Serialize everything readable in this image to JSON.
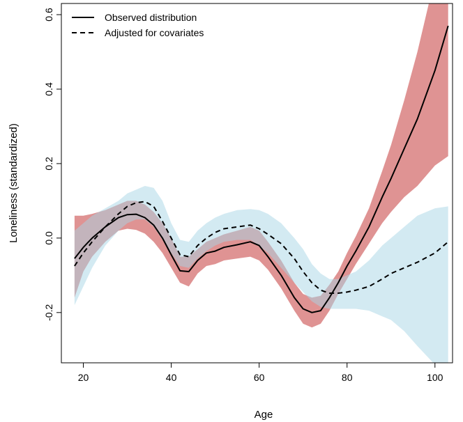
{
  "chart_data": {
    "type": "line",
    "title": "",
    "xlabel": "Age",
    "ylabel": "Loneliness (standardized)",
    "xlim": [
      15,
      104
    ],
    "ylim": [
      -0.335,
      0.63
    ],
    "x_ticks": [
      20,
      40,
      60,
      80,
      100
    ],
    "y_ticks": [
      -0.2,
      0.0,
      0.2,
      0.4,
      0.6
    ],
    "x_tick_labels": [
      "20",
      "40",
      "60",
      "80",
      "100"
    ],
    "y_tick_labels": [
      "-0.2",
      "0.0",
      "0.2",
      "0.4",
      "0.6"
    ],
    "grid": false,
    "legend_position": "top-left",
    "series": [
      {
        "name": "Observed distribution",
        "line_style": "solid",
        "band_color": "#d98080",
        "x": [
          18,
          20,
          22,
          25,
          28,
          30,
          32,
          34,
          36,
          38,
          40,
          42,
          44,
          46,
          48,
          50,
          52,
          55,
          58,
          60,
          62,
          65,
          68,
          70,
          72,
          74,
          76,
          78,
          80,
          82,
          85,
          88,
          90,
          93,
          96,
          100,
          103
        ],
        "y": [
          -0.055,
          -0.025,
          0.0,
          0.03,
          0.055,
          0.063,
          0.064,
          0.055,
          0.035,
          0.0,
          -0.045,
          -0.088,
          -0.09,
          -0.06,
          -0.04,
          -0.035,
          -0.025,
          -0.018,
          -0.01,
          -0.02,
          -0.05,
          -0.1,
          -0.16,
          -0.19,
          -0.2,
          -0.195,
          -0.16,
          -0.12,
          -0.075,
          -0.035,
          0.03,
          0.11,
          0.16,
          0.24,
          0.32,
          0.45,
          0.57
        ],
        "lower": [
          -0.16,
          -0.09,
          -0.05,
          -0.01,
          0.02,
          0.025,
          0.022,
          0.012,
          -0.01,
          -0.04,
          -0.08,
          -0.12,
          -0.13,
          -0.095,
          -0.075,
          -0.07,
          -0.06,
          -0.055,
          -0.05,
          -0.06,
          -0.085,
          -0.135,
          -0.195,
          -0.23,
          -0.24,
          -0.23,
          -0.195,
          -0.15,
          -0.11,
          -0.07,
          -0.015,
          0.04,
          0.07,
          0.11,
          0.14,
          0.195,
          0.22
        ],
        "upper": [
          0.06,
          0.06,
          0.065,
          0.075,
          0.09,
          0.1,
          0.1,
          0.09,
          0.07,
          0.04,
          0.0,
          -0.05,
          -0.05,
          -0.03,
          -0.01,
          0.0,
          0.01,
          0.02,
          0.03,
          0.02,
          -0.01,
          -0.06,
          -0.12,
          -0.15,
          -0.16,
          -0.155,
          -0.125,
          -0.09,
          -0.04,
          0.005,
          0.08,
          0.18,
          0.25,
          0.37,
          0.5,
          0.7,
          0.91
        ]
      },
      {
        "name": "Adjusted for covariates",
        "line_style": "dashed",
        "band_color": "#a8d6e6",
        "x": [
          18,
          20,
          22,
          25,
          28,
          30,
          32,
          34,
          36,
          38,
          40,
          42,
          44,
          46,
          48,
          50,
          52,
          55,
          58,
          60,
          62,
          65,
          68,
          70,
          72,
          74,
          76,
          78,
          80,
          82,
          85,
          88,
          90,
          93,
          96,
          100,
          103
        ],
        "y": [
          -0.075,
          -0.04,
          -0.01,
          0.03,
          0.065,
          0.085,
          0.095,
          0.098,
          0.085,
          0.045,
          0.0,
          -0.045,
          -0.05,
          -0.02,
          0.0,
          0.015,
          0.025,
          0.03,
          0.035,
          0.025,
          0.01,
          -0.015,
          -0.055,
          -0.09,
          -0.12,
          -0.14,
          -0.148,
          -0.148,
          -0.145,
          -0.14,
          -0.13,
          -0.11,
          -0.095,
          -0.08,
          -0.065,
          -0.04,
          -0.01
        ],
        "lower": [
          -0.18,
          -0.13,
          -0.08,
          -0.02,
          0.02,
          0.04,
          0.05,
          0.05,
          0.03,
          -0.005,
          -0.04,
          -0.075,
          -0.08,
          -0.055,
          -0.035,
          -0.02,
          -0.01,
          -0.005,
          -0.005,
          -0.02,
          -0.04,
          -0.08,
          -0.12,
          -0.145,
          -0.17,
          -0.185,
          -0.19,
          -0.19,
          -0.19,
          -0.19,
          -0.195,
          -0.21,
          -0.22,
          -0.25,
          -0.29,
          -0.34,
          -0.4
        ],
        "upper": [
          0.02,
          0.04,
          0.06,
          0.08,
          0.1,
          0.12,
          0.13,
          0.14,
          0.135,
          0.1,
          0.04,
          -0.005,
          -0.01,
          0.02,
          0.04,
          0.055,
          0.065,
          0.075,
          0.078,
          0.075,
          0.065,
          0.04,
          0.0,
          -0.03,
          -0.07,
          -0.095,
          -0.11,
          -0.11,
          -0.1,
          -0.09,
          -0.06,
          -0.02,
          0.0,
          0.03,
          0.06,
          0.08,
          0.085
        ]
      }
    ]
  }
}
